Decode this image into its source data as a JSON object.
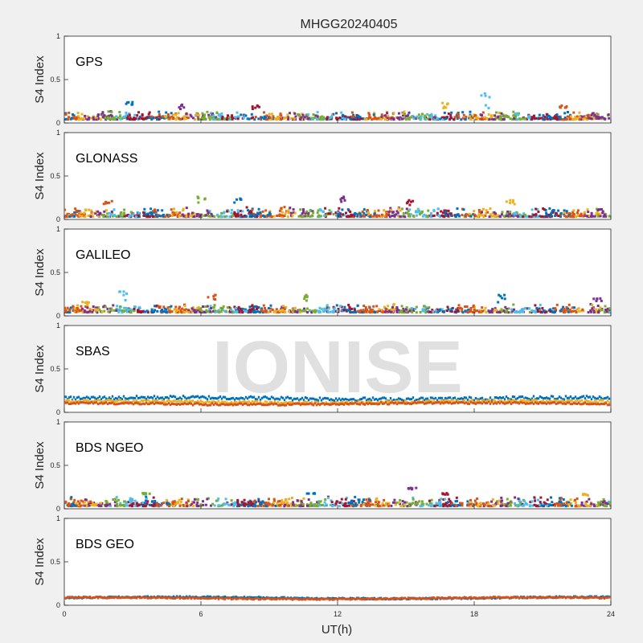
{
  "figure": {
    "title": "MHGG20240405",
    "watermark": "IONISE",
    "background_color": "#f0f0f0",
    "xlabel": "UT(h)"
  },
  "chart_data": {
    "type": "scatter",
    "xlim": [
      0,
      24
    ],
    "ylim": [
      0,
      1
    ],
    "x_ticks": [
      0,
      6,
      12,
      18,
      24
    ],
    "y_ticks": [
      0,
      0.5,
      1
    ],
    "y_tick_labels": [
      "0",
      "0.5",
      "1"
    ],
    "ylabel": "S4 Index",
    "xlabel": "UT(h)",
    "grid": false,
    "legend": "none",
    "marker_colors": [
      "#0072bd",
      "#d95319",
      "#edb120",
      "#7e2f8e",
      "#77ac30",
      "#4dbeee",
      "#a2142f"
    ],
    "panels": [
      {
        "label": "GPS",
        "baseline_range": [
          0.04,
          0.13
        ],
        "peaks": [
          {
            "x": 2.8,
            "y": 0.24
          },
          {
            "x": 5.1,
            "y": 0.21
          },
          {
            "x": 8.4,
            "y": 0.2
          },
          {
            "x": 16.8,
            "y": 0.23
          },
          {
            "x": 18.5,
            "y": 0.34
          },
          {
            "x": 21.9,
            "y": 0.2
          }
        ]
      },
      {
        "label": "GLONASS",
        "baseline_range": [
          0.03,
          0.14
        ],
        "peaks": [
          {
            "x": 1.9,
            "y": 0.21
          },
          {
            "x": 6.0,
            "y": 0.26
          },
          {
            "x": 7.6,
            "y": 0.24
          },
          {
            "x": 12.2,
            "y": 0.26
          },
          {
            "x": 15.2,
            "y": 0.22
          },
          {
            "x": 19.6,
            "y": 0.22
          }
        ]
      },
      {
        "label": "GALILEO",
        "baseline_range": [
          0.04,
          0.13
        ],
        "peaks": [
          {
            "x": 1.0,
            "y": 0.16
          },
          {
            "x": 2.6,
            "y": 0.28
          },
          {
            "x": 6.5,
            "y": 0.24
          },
          {
            "x": 10.7,
            "y": 0.24
          },
          {
            "x": 19.2,
            "y": 0.24
          },
          {
            "x": 23.4,
            "y": 0.2
          }
        ]
      },
      {
        "label": "SBAS",
        "series": [
          {
            "color": "#0072bd",
            "y_mean": 0.16,
            "y_amp": 0.02
          },
          {
            "color": "#edb120",
            "y_mean": 0.12,
            "y_amp": 0.015
          },
          {
            "color": "#d95319",
            "y_mean": 0.1,
            "y_amp": 0.012
          }
        ]
      },
      {
        "label": "BDS NGEO",
        "baseline_range": [
          0.03,
          0.13
        ],
        "peaks": [
          {
            "x": 3.6,
            "y": 0.18
          },
          {
            "x": 10.8,
            "y": 0.18
          },
          {
            "x": 15.3,
            "y": 0.24
          },
          {
            "x": 16.8,
            "y": 0.18
          },
          {
            "x": 22.8,
            "y": 0.17
          }
        ]
      },
      {
        "label": "BDS GEO",
        "series": [
          {
            "color": "#0072bd",
            "y_mean": 0.085,
            "y_amp": 0.008
          },
          {
            "color": "#d95319",
            "y_mean": 0.08,
            "y_amp": 0.008
          }
        ]
      }
    ]
  }
}
